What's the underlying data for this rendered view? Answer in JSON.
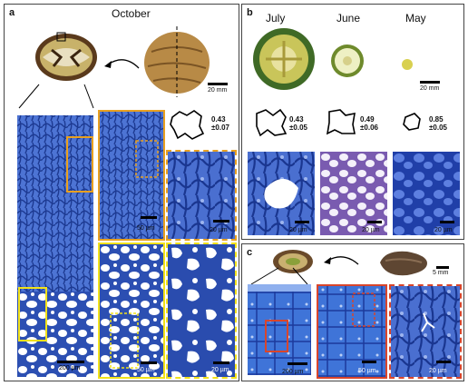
{
  "panel_a": {
    "label": "a",
    "month": "October",
    "photo_scale": "20 mm",
    "overview_scale": "200 µm",
    "ratio": "0.43",
    "ratio_sd": "±0.07",
    "zoom_scales": [
      "50 µm",
      "20 µm",
      "50 µm",
      "20 µm"
    ]
  },
  "panel_b": {
    "label": "b",
    "months": [
      "July",
      "June",
      "May"
    ],
    "photo_scale": "20 mm",
    "ratios": [
      {
        "value": "0.43",
        "sd": "±0.05"
      },
      {
        "value": "0.49",
        "sd": "±0.06"
      },
      {
        "value": "0.85",
        "sd": "±0.05"
      }
    ],
    "micro_scales": [
      "20 µm",
      "20 µm",
      "20 µm"
    ]
  },
  "panel_c": {
    "label": "c",
    "photo_scale": "5 mm",
    "overview_scale": "200 µm",
    "zoom_scales": [
      "50 µm",
      "20 µm"
    ]
  },
  "colors": {
    "orange": "#e8a020",
    "yellow": "#f2e21a",
    "red": "#d9452b",
    "stain": "#2c52b8",
    "stain_light": "#6a8ee0"
  }
}
